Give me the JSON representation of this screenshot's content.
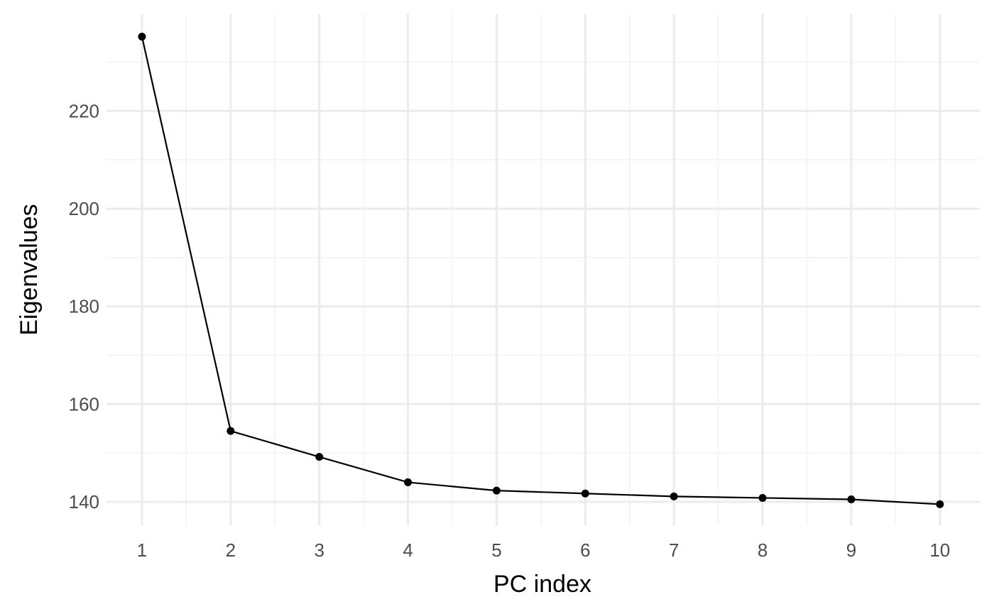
{
  "chart_data": {
    "type": "line",
    "xlabel": "PC index",
    "ylabel": "Eigenvalues",
    "x": [
      1,
      2,
      3,
      4,
      5,
      6,
      7,
      8,
      9,
      10
    ],
    "series": [
      {
        "values": [
          235.2,
          154.5,
          149.2,
          144.0,
          142.3,
          141.7,
          141.1,
          140.8,
          140.5,
          139.5
        ]
      }
    ],
    "xlim": [
      0.6,
      10.45
    ],
    "ylim": [
      135.2,
      239.8
    ],
    "x_ticks": [
      "1",
      "2",
      "3",
      "4",
      "5",
      "6",
      "7",
      "8",
      "9",
      "10"
    ],
    "y_ticks": [
      "140",
      "160",
      "180",
      "200",
      "220"
    ],
    "grid": true,
    "legend": "none",
    "colors": {
      "background": "#ffffff",
      "grid_major": "#ebebeb",
      "grid_minor": "#f2f2f2",
      "line": "#000000",
      "tick_text": "#4d4d4d"
    }
  }
}
